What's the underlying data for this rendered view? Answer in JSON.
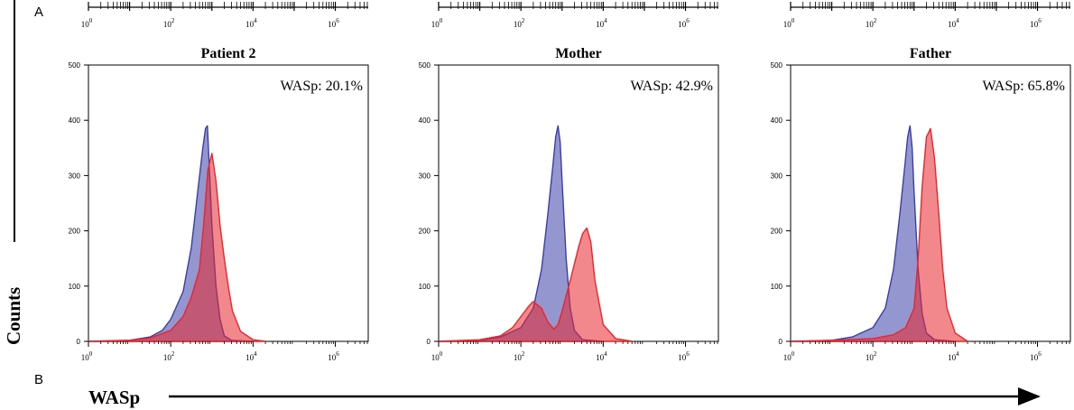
{
  "figure": {
    "panel_label_a": "A",
    "panel_label_b": "B",
    "y_axis_label": "Counts",
    "x_axis_label": "WASp",
    "colors": {
      "control": "#3a3fa8",
      "sample": "#e8262b",
      "axis": "#000000"
    }
  },
  "chart_data": [
    {
      "type": "area",
      "title": "Patient 2",
      "annotation": "WASp: 20.1%",
      "xscale": "log",
      "xlim": [
        1,
        10000000
      ],
      "ylim": [
        0,
        500
      ],
      "yticks": [
        0,
        100,
        200,
        300,
        400,
        500
      ],
      "xticks": [
        {
          "base": "10",
          "exp": "0"
        },
        {
          "base": "10",
          "exp": "2"
        },
        {
          "base": "10",
          "exp": "4"
        },
        {
          "base": "10",
          "exp": "6"
        }
      ],
      "grid": false,
      "series": [
        {
          "role": "control",
          "x": [
            1,
            10,
            31.6,
            63,
            100,
            200,
            316,
            450,
            600,
            700,
            780,
            850,
            1000,
            1260,
            1580,
            2000,
            3000,
            10000
          ],
          "values": [
            0,
            2,
            8,
            20,
            40,
            90,
            170,
            270,
            350,
            385,
            390,
            330,
            210,
            100,
            40,
            10,
            2,
            0
          ]
        },
        {
          "role": "sample",
          "x": [
            1,
            10,
            31.6,
            100,
            200,
            316,
            500,
            630,
            800,
            1000,
            1260,
            1580,
            2000,
            2500,
            3160,
            5000,
            10000,
            20000
          ],
          "values": [
            0,
            2,
            6,
            20,
            45,
            80,
            130,
            210,
            310,
            340,
            290,
            210,
            150,
            100,
            55,
            18,
            3,
            0
          ]
        }
      ]
    },
    {
      "type": "area",
      "title": "Mother",
      "annotation": "WASp: 42.9%",
      "xscale": "log",
      "xlim": [
        1,
        10000000
      ],
      "ylim": [
        0,
        500
      ],
      "yticks": [
        0,
        100,
        200,
        300,
        400,
        500
      ],
      "xticks": [
        {
          "base": "10",
          "exp": "0"
        },
        {
          "base": "10",
          "exp": "2"
        },
        {
          "base": "10",
          "exp": "4"
        },
        {
          "base": "10",
          "exp": "6"
        }
      ],
      "grid": false,
      "series": [
        {
          "role": "control",
          "x": [
            1,
            10,
            31.6,
            100,
            200,
            316,
            450,
            600,
            700,
            800,
            900,
            1000,
            1260,
            1580,
            2000,
            3160,
            10000
          ],
          "values": [
            0,
            2,
            8,
            25,
            60,
            130,
            230,
            320,
            370,
            390,
            360,
            290,
            150,
            60,
            20,
            3,
            0
          ]
        },
        {
          "role": "sample",
          "x": [
            1,
            10,
            31.6,
            63,
            100,
            160,
            200,
            316,
            450,
            630,
            800,
            1000,
            1580,
            2510,
            3160,
            4000,
            5000,
            6300,
            10000,
            20000,
            50000
          ],
          "values": [
            0,
            3,
            10,
            25,
            45,
            65,
            72,
            60,
            35,
            22,
            30,
            55,
            110,
            170,
            195,
            205,
            180,
            110,
            30,
            5,
            0
          ]
        }
      ]
    },
    {
      "type": "area",
      "title": "Father",
      "annotation": "WASp: 65.8%",
      "xscale": "log",
      "xlim": [
        1,
        10000000
      ],
      "ylim": [
        0,
        500
      ],
      "yticks": [
        0,
        100,
        200,
        300,
        400,
        500
      ],
      "xticks": [
        {
          "base": "10",
          "exp": "0"
        },
        {
          "base": "10",
          "exp": "2"
        },
        {
          "base": "10",
          "exp": "4"
        },
        {
          "base": "10",
          "exp": "6"
        }
      ],
      "grid": false,
      "series": [
        {
          "role": "control",
          "x": [
            1,
            10,
            31.6,
            100,
            200,
            316,
            450,
            600,
            700,
            800,
            900,
            1000,
            1260,
            1580,
            2000,
            3160,
            10000
          ],
          "values": [
            0,
            2,
            8,
            25,
            60,
            130,
            230,
            320,
            370,
            390,
            350,
            270,
            130,
            50,
            15,
            3,
            0
          ]
        },
        {
          "role": "sample",
          "x": [
            1,
            10,
            100,
            316,
            630,
            1000,
            1260,
            1580,
            2000,
            2510,
            3160,
            4000,
            5000,
            6300,
            10000,
            20000
          ],
          "values": [
            0,
            2,
            5,
            12,
            25,
            60,
            150,
            280,
            370,
            385,
            330,
            230,
            130,
            60,
            15,
            0
          ]
        }
      ]
    }
  ]
}
